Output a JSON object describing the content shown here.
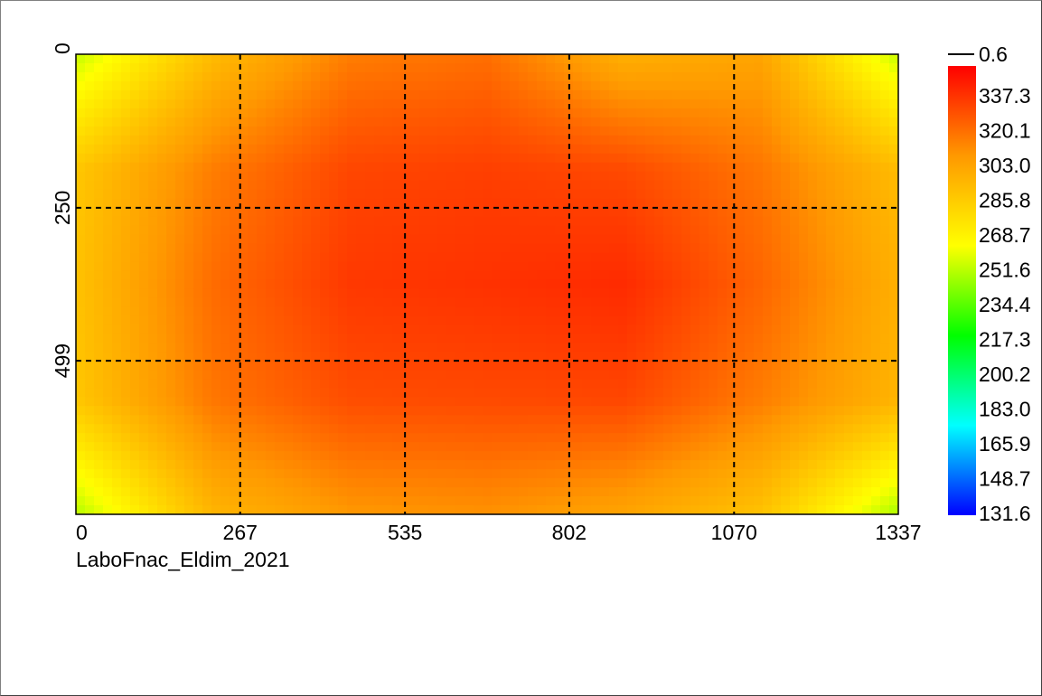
{
  "chart_data": {
    "type": "heatmap",
    "title": "",
    "caption": "LaboFnac_Eldim_2021",
    "x_ticks": [
      "0",
      "267",
      "535",
      "802",
      "1070",
      "1337"
    ],
    "y_ticks": [
      "0",
      "250",
      "499"
    ],
    "x_range": [
      0,
      1337
    ],
    "y_range": [
      0,
      749
    ],
    "grid": true,
    "grid_style": "dashed",
    "colorbar": {
      "position": "right",
      "marker_label": "0.6",
      "labels": [
        "337.3",
        "320.1",
        "303.0",
        "285.8",
        "268.7",
        "251.6",
        "234.4",
        "217.3",
        "200.2",
        "183.0",
        "165.9",
        "148.7",
        "131.6"
      ],
      "min": 131.6,
      "max": 354.4,
      "colors": [
        "#0000ff",
        "#00ffff",
        "#00ff00",
        "#ffff00",
        "#ff9900",
        "#ff0000"
      ]
    },
    "heat_grid": {
      "cols": [
        "0",
        "223",
        "446",
        "669",
        "891",
        "1114",
        "1337"
      ],
      "rows": [
        "0",
        "187",
        "375",
        "562",
        "749"
      ],
      "values": [
        [
          255,
          295,
          318,
          322,
          300,
          305,
          255
        ],
        [
          290,
          318,
          334,
          336,
          333,
          320,
          295
        ],
        [
          292,
          323,
          338,
          340,
          342,
          325,
          300
        ],
        [
          290,
          320,
          332,
          333,
          334,
          318,
          298
        ],
        [
          252,
          298,
          310,
          312,
          305,
          292,
          250
        ]
      ]
    }
  }
}
